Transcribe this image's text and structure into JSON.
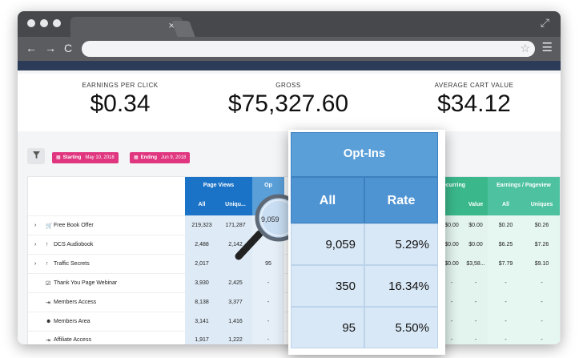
{
  "browser": {
    "tab_close": "×",
    "nav_back": "←",
    "nav_forward": "→",
    "nav_reload": "C",
    "star": "☆",
    "menu": "☰",
    "expand": "⤢"
  },
  "stats": [
    {
      "label": "EARNINGS PER CLICK",
      "value": "$0.34"
    },
    {
      "label": "GROSS",
      "value": "$75,327.60"
    },
    {
      "label": "AVERAGE CART VALUE",
      "value": "$34.12"
    }
  ],
  "filters": {
    "filter_icon": "filter-icon",
    "starting_label": "Starting",
    "starting_date": "May 10, 2018",
    "ending_label": "Ending",
    "ending_date": "Jun 9, 2018"
  },
  "table": {
    "page_views_header": "Page Views",
    "page_views_all": "All",
    "page_views_uniques": "Uniqu...",
    "optins_partial_header": "Op",
    "recurring_partial_header": "ecurring",
    "recurring_value": "Value",
    "epp_header": "Earnings / Pageview",
    "epp_all": "All",
    "epp_uniques": "Uniques",
    "rows": [
      {
        "label": "Free Book Offer",
        "icon": "cart-icon",
        "expand": "›",
        "all": "219,323",
        "uniques": "171,287",
        "optin": "",
        "rec1": "$0.00",
        "rec2": "$0.00",
        "epp_all": "$0.20",
        "epp_uniques": "$0.26"
      },
      {
        "label": "DCS Audiobook",
        "icon": "up-arrow-icon",
        "expand": "›",
        "all": "2,488",
        "uniques": "2,142",
        "optin": "",
        "rec1": "$0.00",
        "rec2": "$0.00",
        "epp_all": "$6.25",
        "epp_uniques": "$7.26"
      },
      {
        "label": "Traffic Secrets",
        "icon": "up-arrow-icon",
        "expand": "›",
        "all": "2,017",
        "uniques": "",
        "optin": "95",
        "rec1": "$0.00",
        "rec2": "$3,58...",
        "epp_all": "$7.79",
        "epp_uniques": "$9.10"
      },
      {
        "label": "Thank You Page Webinar",
        "icon": "checkbox-icon",
        "expand": "",
        "all": "3,930",
        "uniques": "2,425",
        "optin": "-",
        "rec1": "-",
        "rec2": "-",
        "epp_all": "-",
        "epp_uniques": "-"
      },
      {
        "label": "Members Access",
        "icon": "login-icon",
        "expand": "",
        "all": "8,138",
        "uniques": "3,377",
        "optin": "-",
        "rec1": "-",
        "rec2": "-",
        "epp_all": "-",
        "epp_uniques": "-"
      },
      {
        "label": "Members Area",
        "icon": "group-icon",
        "expand": "",
        "all": "3,141",
        "uniques": "1,416",
        "optin": "-",
        "rec1": "-",
        "rec2": "-",
        "epp_all": "-",
        "epp_uniques": "-"
      },
      {
        "label": "Affiliate Access",
        "icon": "login-icon",
        "expand": "",
        "all": "1,917",
        "uniques": "1,222",
        "optin": "-",
        "rec1": "-",
        "rec2": "-",
        "epp_all": "-",
        "epp_uniques": "-"
      }
    ]
  },
  "magnifier_value": "9,059",
  "popup": {
    "title": "Opt-Ins",
    "col_all": "All",
    "col_rate": "Rate",
    "rows": [
      {
        "all": "9,059",
        "rate": "5.29%"
      },
      {
        "all": "350",
        "rate": "16.34%"
      },
      {
        "all": "95",
        "rate": "5.50%"
      }
    ]
  },
  "colors": {
    "page_views_header": "#1a73c6",
    "optins_header": "#5a9fd8",
    "recurring_header": "#3ab88c",
    "epp_header": "#4ec2a0",
    "date_tag": "#e0367f"
  }
}
